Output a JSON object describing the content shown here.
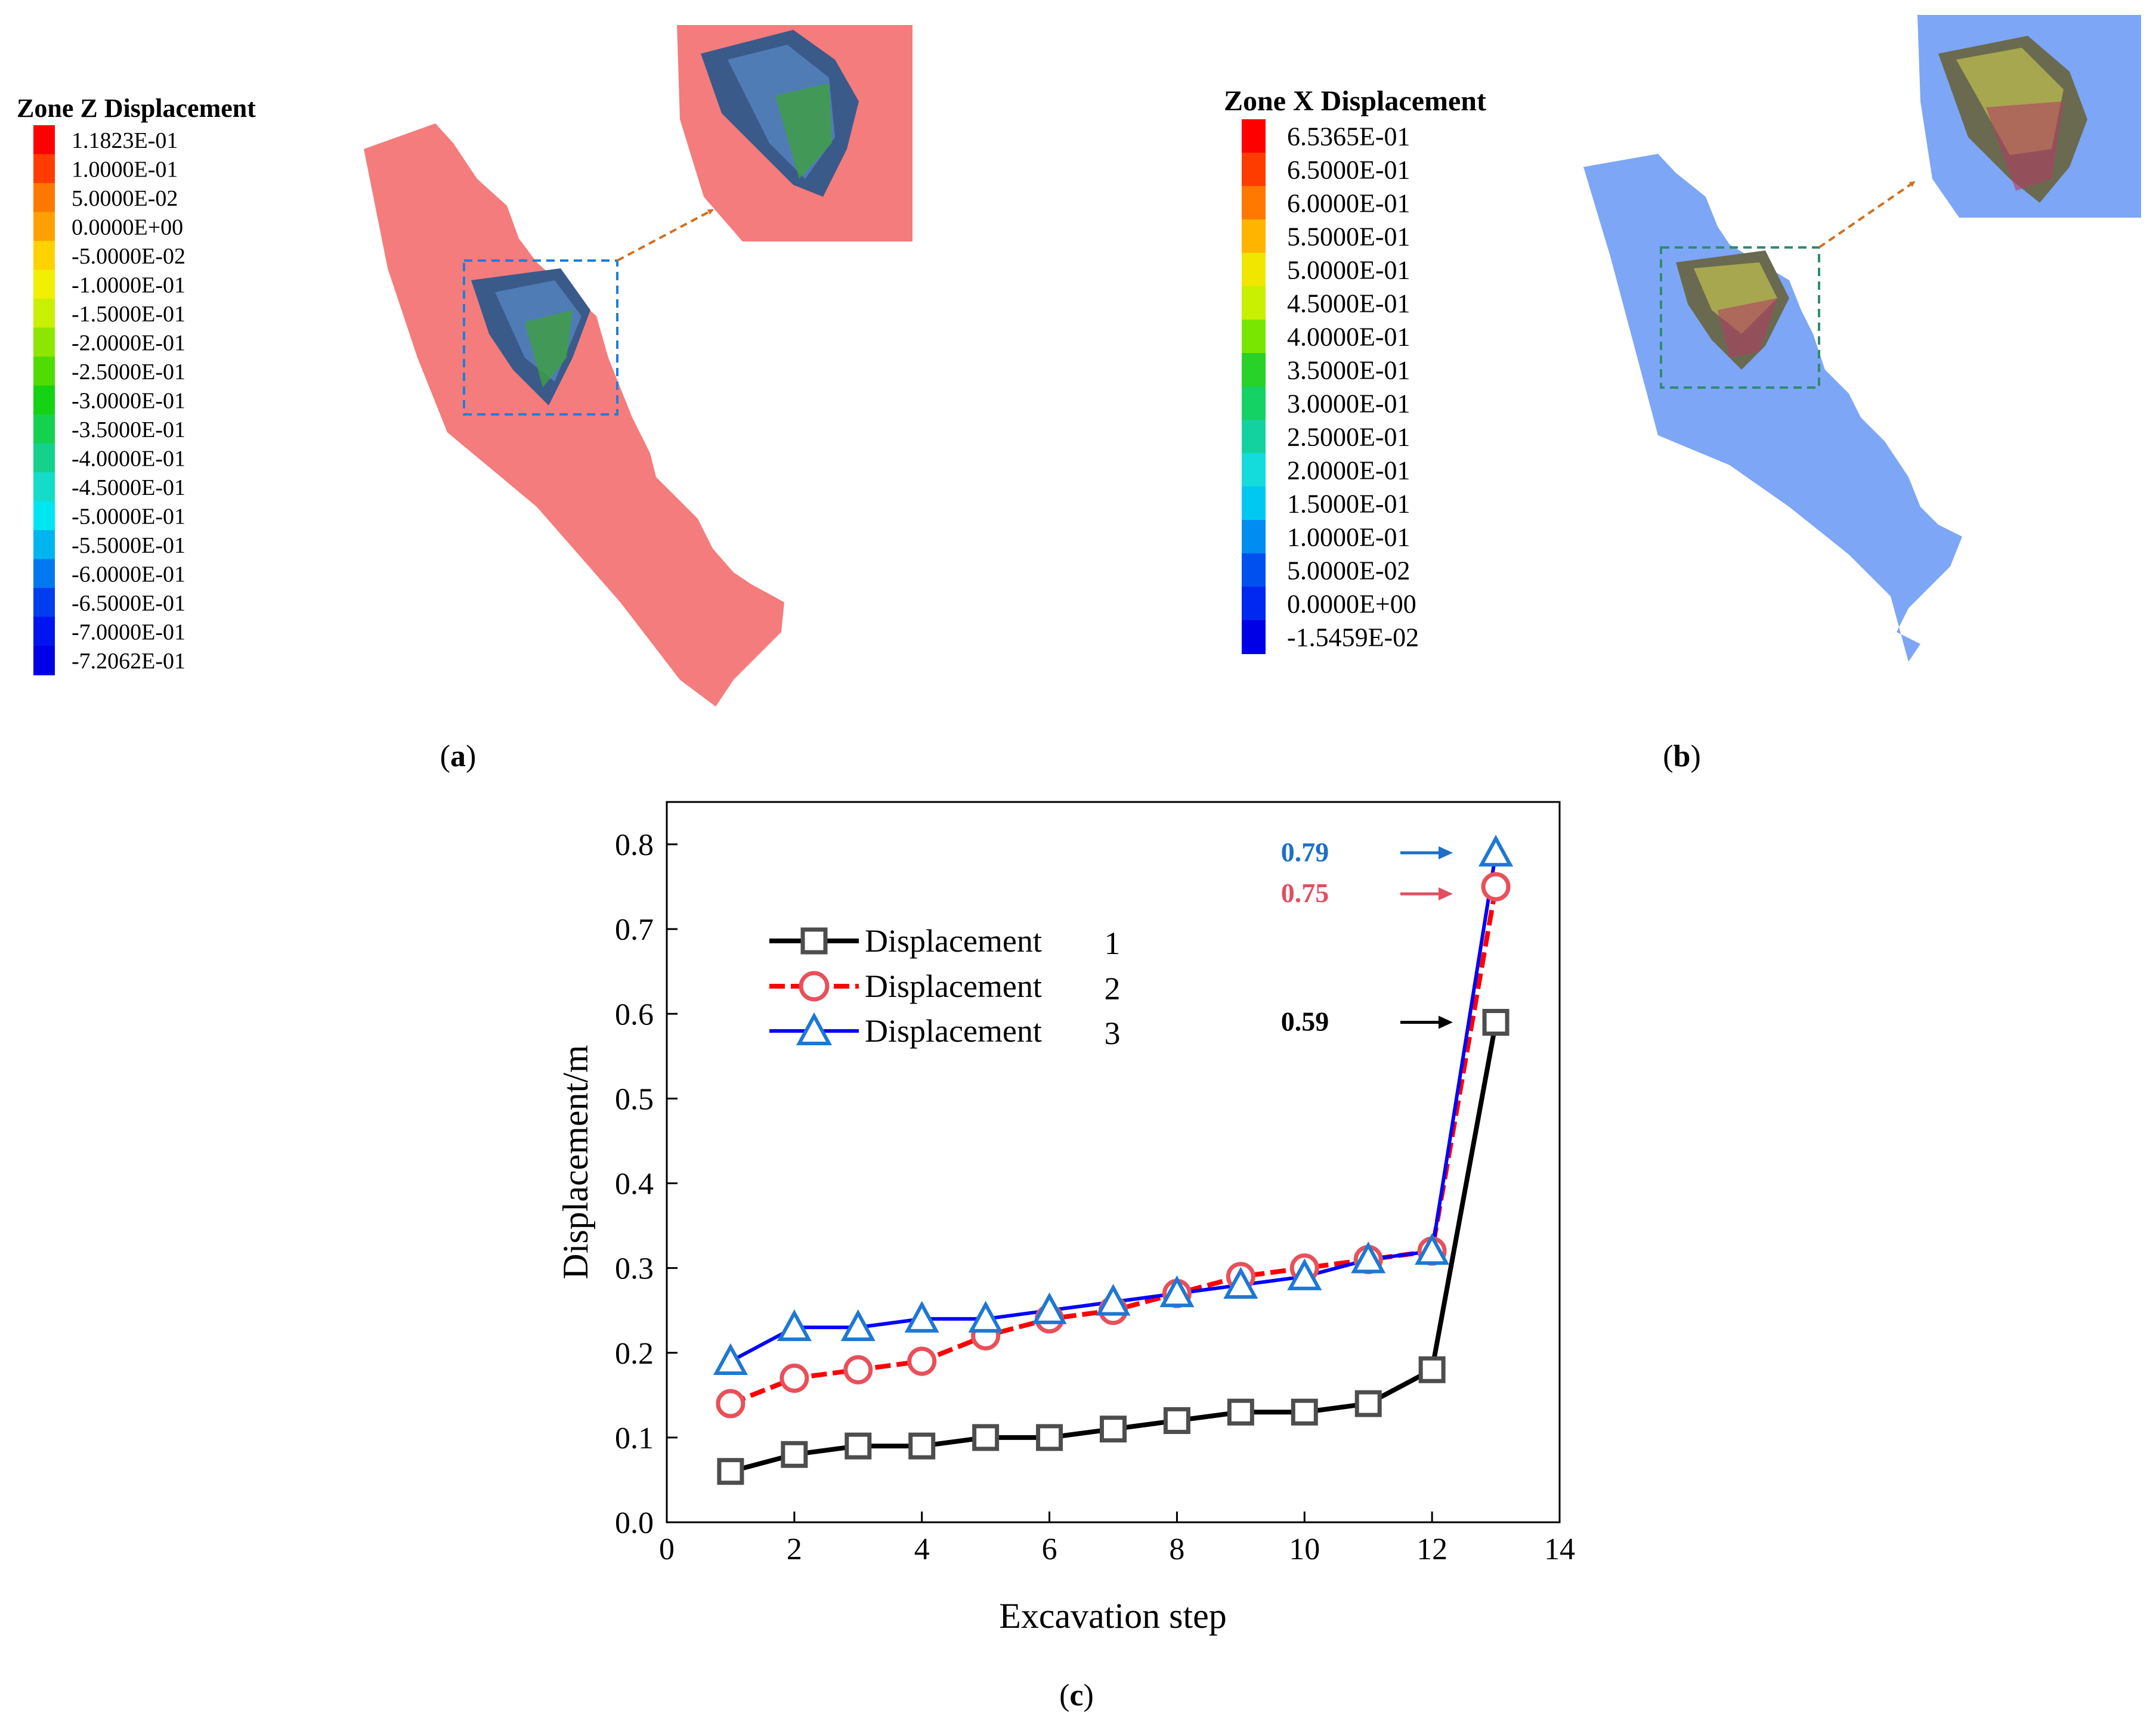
{
  "panel_a": {
    "legend_title": "Zone Z Displacement",
    "levels": [
      "1.1823E-01",
      "1.0000E-01",
      "5.0000E-02",
      "0.0000E+00",
      "-5.0000E-02",
      "-1.0000E-01",
      "-1.5000E-01",
      "-2.0000E-01",
      "-2.5000E-01",
      "-3.0000E-01",
      "-3.5000E-01",
      "-4.0000E-01",
      "-4.5000E-01",
      "-5.0000E-01",
      "-5.5000E-01",
      "-6.0000E-01",
      "-6.5000E-01",
      "-7.0000E-01",
      "-7.2062E-01"
    ],
    "colors": [
      "#ff0000",
      "#ff3c00",
      "#ff7800",
      "#ffa000",
      "#ffd200",
      "#f0f000",
      "#c8f000",
      "#8ce600",
      "#50dc00",
      "#14d214",
      "#14d250",
      "#14d28c",
      "#14dcc8",
      "#00e6f0",
      "#00b4f0",
      "#0078f0",
      "#003cf0",
      "#0014f0",
      "#0000e6"
    ],
    "model_color": "#f47c7c",
    "box_color": "#1f7fd6",
    "caption": "a"
  },
  "panel_b": {
    "legend_title": "Zone X Displacement",
    "levels": [
      "6.5365E-01",
      "6.5000E-01",
      "6.0000E-01",
      "5.5000E-01",
      "5.0000E-01",
      "4.5000E-01",
      "4.0000E-01",
      "3.5000E-01",
      "3.0000E-01",
      "2.5000E-01",
      "2.0000E-01",
      "1.5000E-01",
      "1.0000E-01",
      "5.0000E-02",
      "0.0000E+00",
      "-1.5459E-02"
    ],
    "colors": [
      "#ff0000",
      "#ff3c00",
      "#ff7800",
      "#ffb400",
      "#f0e600",
      "#c8f000",
      "#78e600",
      "#28d228",
      "#14d264",
      "#14d2a0",
      "#14dcdc",
      "#00c8f0",
      "#008cf0",
      "#0050f0",
      "#0028f0",
      "#0000e6"
    ],
    "model_color": "#7ea6f6",
    "box_color": "#2e8b73",
    "caption": "b"
  },
  "chart_data": {
    "type": "line",
    "xlabel": "Excavation step",
    "ylabel": "Displacement/m",
    "xlim": [
      0,
      14
    ],
    "ylim": [
      0,
      0.85
    ],
    "x_ticks": [
      "0",
      "2",
      "4",
      "6",
      "8",
      "10",
      "12",
      "14"
    ],
    "y_ticks": [
      "0.0",
      "0.1",
      "0.2",
      "0.3",
      "0.4",
      "0.5",
      "0.6",
      "0.7",
      "0.8"
    ],
    "x": [
      1,
      2,
      3,
      4,
      5,
      6,
      7,
      8,
      9,
      10,
      11,
      12,
      13
    ],
    "series": [
      {
        "name": "Displacement",
        "num": "1",
        "marker": "square",
        "line_color": "#000000",
        "marker_color": "#4d4d4d",
        "values": [
          0.06,
          0.08,
          0.09,
          0.09,
          0.1,
          0.1,
          0.11,
          0.12,
          0.13,
          0.13,
          0.14,
          0.18,
          0.59
        ]
      },
      {
        "name": "Displacement",
        "num": "2",
        "marker": "circle",
        "line_color": "#ff0000",
        "marker_color": "#e8505a",
        "values": [
          0.14,
          0.17,
          0.18,
          0.19,
          0.22,
          0.24,
          0.25,
          0.27,
          0.29,
          0.3,
          0.31,
          0.32,
          0.75
        ]
      },
      {
        "name": "Displacement",
        "num": "3",
        "marker": "triangle",
        "line_color": "#0000ff",
        "marker_color": "#1e78d2",
        "values": [
          0.19,
          0.23,
          0.23,
          0.24,
          0.24,
          0.25,
          0.26,
          0.27,
          0.28,
          0.29,
          0.31,
          0.32,
          0.79
        ]
      }
    ],
    "annotations": [
      {
        "text": "0.79",
        "color": "#1e6fc6",
        "y": 0.79
      },
      {
        "text": "0.75",
        "color": "#e05060",
        "y": 0.75
      },
      {
        "text": "0.59",
        "color": "#000000",
        "y": 0.59
      }
    ],
    "caption": "c"
  }
}
